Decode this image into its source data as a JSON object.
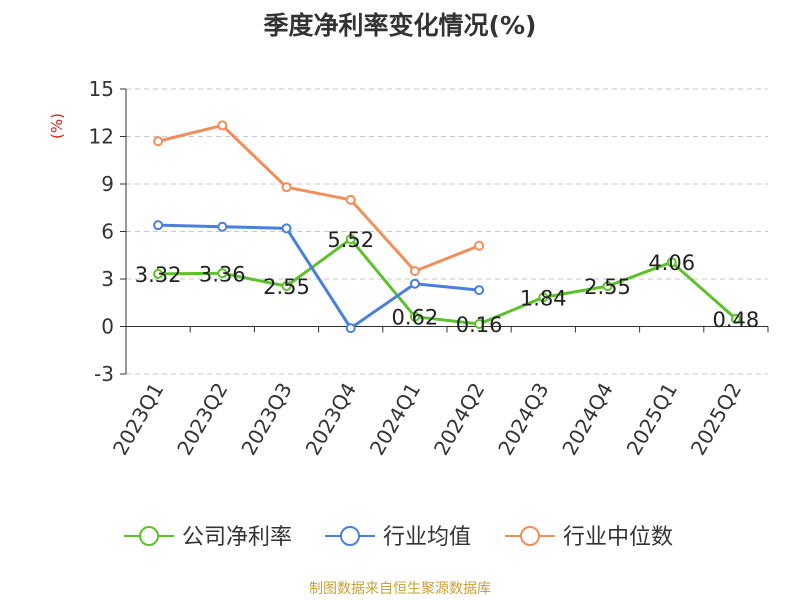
{
  "chart_data": {
    "type": "line",
    "title": "季度净利率变化情况(%)",
    "ylabel": "(%)",
    "xlabel": "",
    "categories": [
      "2023Q1",
      "2023Q2",
      "2023Q3",
      "2023Q4",
      "2024Q1",
      "2024Q2",
      "2024Q3",
      "2024Q4",
      "2025Q1",
      "2025Q2"
    ],
    "ylim": [
      -3,
      15
    ],
    "yticks": [
      -3,
      0,
      3,
      6,
      9,
      12,
      15
    ],
    "grid": "horizontal dashed",
    "legend_position": "bottom",
    "series": [
      {
        "name": "公司净利率",
        "color": "#5ec12c",
        "values": [
          3.32,
          3.36,
          2.55,
          5.52,
          0.62,
          0.16,
          1.84,
          2.55,
          4.06,
          0.48
        ],
        "labels": true
      },
      {
        "name": "行业均值",
        "color": "#4a7fdc",
        "values": [
          6.4,
          6.3,
          6.2,
          -0.1,
          2.7,
          2.3,
          null,
          null,
          null,
          null
        ],
        "labels": false
      },
      {
        "name": "行业中位数",
        "color": "#f28e5a",
        "values": [
          11.7,
          12.7,
          8.8,
          8.0,
          3.5,
          5.1,
          null,
          null,
          null,
          null
        ],
        "labels": false
      }
    ]
  },
  "source": "制图数据来自恒生聚源数据库"
}
